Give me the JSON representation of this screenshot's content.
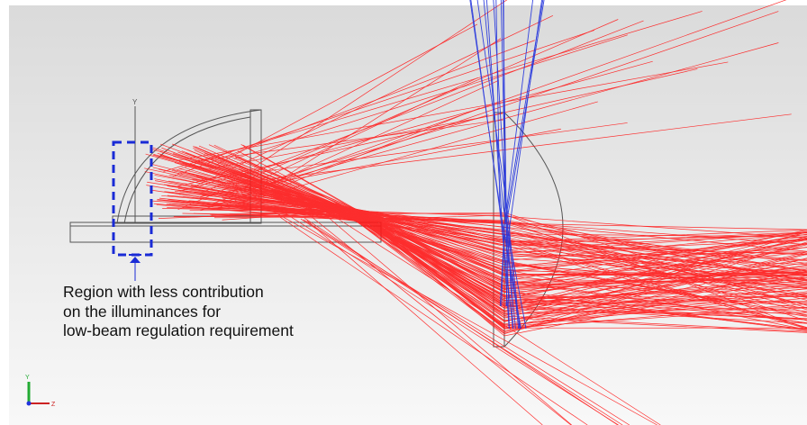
{
  "annotation": {
    "lines": [
      "Region with less contribution",
      "on the illuminances for",
      "low-beam regulation requirement"
    ]
  },
  "axis_labels": {
    "vertical": "Y",
    "horizontal": "Z"
  },
  "colors": {
    "red_rays": "#ff1a1a",
    "blue_rays": "#2233dd",
    "outline": "#555555",
    "highlight_box": "#1a2bd6",
    "background_top": "#dcdcdc",
    "background_bottom": "#f8f8f8"
  }
}
